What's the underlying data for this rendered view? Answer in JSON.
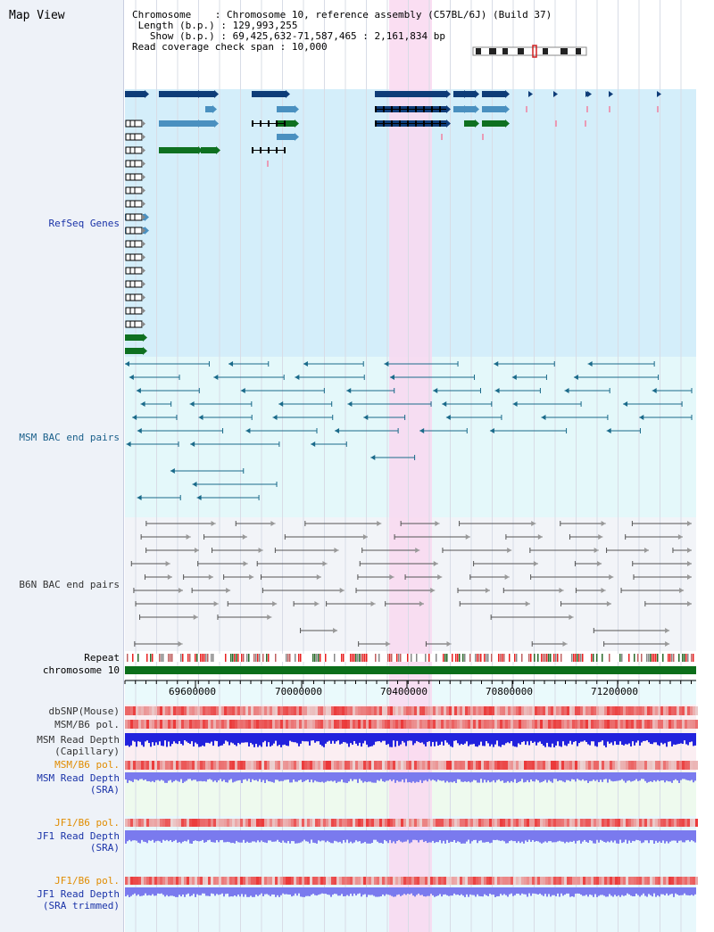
{
  "page_title": "Map View",
  "info": {
    "chromosome_label": "Chromosome",
    "chromosome_value": "Chromosome 10, reference assembly (C57BL/6J) (Build 37)",
    "length_label": "Length (b.p.)",
    "length_value": "129,993,255",
    "show_label": "Show (b.p.)",
    "show_value": "69,425,632-71,587,465 : 2,161,834 bp",
    "coverage_label": "Read coverage check span",
    "coverage_value": "10,000"
  },
  "tracks": {
    "refseq": "RefSeq Genes",
    "msm_bac": "MSM BAC end pairs",
    "b6n_bac": "B6N BAC end pairs",
    "repeat": "Repeat",
    "chromosome": "chromosome 10",
    "dbsnp": "dbSNP(Mouse)",
    "msm_b6_pol_1": "MSM/B6 pol.",
    "msm_read_depth_cap_1": "MSM Read Depth",
    "msm_read_depth_cap_2": "(Capillary)",
    "msm_b6_pol_2": "MSM/B6 pol.",
    "msm_read_depth_sra_1": "MSM Read Depth",
    "msm_read_depth_sra_2": "(SRA)",
    "jf1_b6_pol_1": "JF1/B6 pol.",
    "jf1_read_depth_sra_1": "JF1 Read Depth",
    "jf1_read_depth_sra_2": "(SRA)",
    "jf1_b6_pol_2": "JF1/B6 pol.",
    "jf1_read_depth_trim_1": "JF1 Read Depth",
    "jf1_read_depth_trim_2": "(SRA trimmed)"
  },
  "axis": {
    "ticks": [
      "69600000",
      "70000000",
      "70400000",
      "70800000",
      "71200000"
    ]
  },
  "colors": {
    "refseq_bg": "#d4eefa",
    "msm_bg": "#e4f8fa",
    "b6n_bg": "#f2f4f8",
    "highlight": "#f9d8f0",
    "gene_dark": "#0e3c78",
    "gene_mid": "#4a90c0",
    "gene_green": "#0e7020",
    "bac_teal": "#1a6a8a",
    "bac_gray": "#555555",
    "chrom_green": "#0b6e1a",
    "depth_blue": "#2222dd",
    "depth_light": "#7a7aee",
    "pol_red": "#e83030"
  }
}
